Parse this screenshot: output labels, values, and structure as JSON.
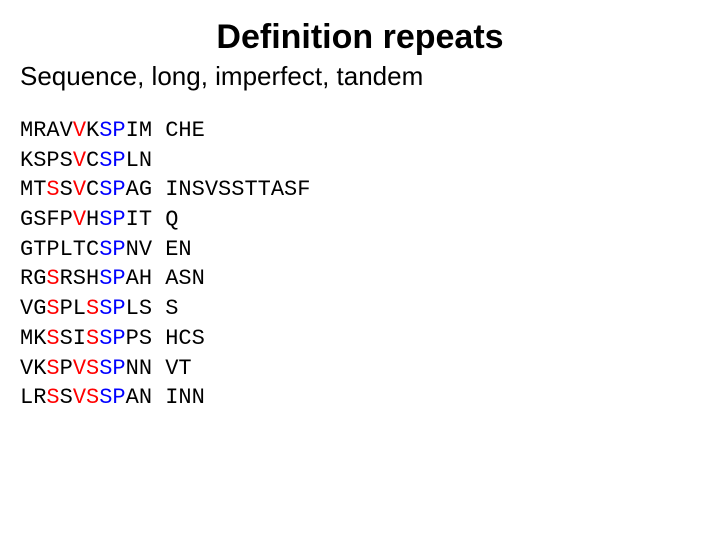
{
  "title": "Definition repeats",
  "subtitle": "Sequence, long, imperfect, tandem",
  "colors": {
    "text": "#000000",
    "highlight_red": "#ff0000",
    "highlight_blue": "#0000ff",
    "background": "#ffffff"
  },
  "typography": {
    "title_fontsize_pt": 26,
    "subtitle_fontsize_pt": 20,
    "seq_fontsize_pt": 17,
    "title_weight": "bold",
    "seq_font": "Courier New"
  },
  "sequence": {
    "col_gap_chars": 1,
    "lines": [
      {
        "col1": [
          {
            "t": "MRAV",
            "c": "k"
          },
          {
            "t": "V",
            "c": "r"
          },
          {
            "t": "K",
            "c": "k"
          },
          {
            "t": "SP",
            "c": "b"
          },
          {
            "t": "IM",
            "c": "k"
          }
        ],
        "col2": [
          {
            "t": "CHE",
            "c": "k"
          }
        ]
      },
      {
        "col1": [
          {
            "t": "KSPS",
            "c": "k"
          },
          {
            "t": "V",
            "c": "r"
          },
          {
            "t": "C",
            "c": "k"
          },
          {
            "t": "SP",
            "c": "b"
          },
          {
            "t": "LN",
            "c": "k"
          }
        ],
        "col2": []
      },
      {
        "col1": [
          {
            "t": "MT",
            "c": "k"
          },
          {
            "t": "S",
            "c": "r"
          },
          {
            "t": "S",
            "c": "k"
          },
          {
            "t": "V",
            "c": "r"
          },
          {
            "t": "C",
            "c": "k"
          },
          {
            "t": "SP",
            "c": "b"
          },
          {
            "t": "AG",
            "c": "k"
          }
        ],
        "col2": [
          {
            "t": "INSVSSTTASF",
            "c": "k"
          }
        ]
      },
      {
        "col1": [
          {
            "t": "GSFP",
            "c": "k"
          },
          {
            "t": "V",
            "c": "r"
          },
          {
            "t": "H",
            "c": "k"
          },
          {
            "t": "SP",
            "c": "b"
          },
          {
            "t": "IT",
            "c": "k"
          }
        ],
        "col2": [
          {
            "t": "Q",
            "c": "k"
          }
        ]
      },
      {
        "col1": [
          {
            "t": "GTPLTC",
            "c": "k"
          },
          {
            "t": "SP",
            "c": "b"
          },
          {
            "t": "NV",
            "c": "k"
          }
        ],
        "col2": [
          {
            "t": "EN",
            "c": "k"
          }
        ]
      },
      {
        "col1": [
          {
            "t": "RG",
            "c": "k"
          },
          {
            "t": "S",
            "c": "r"
          },
          {
            "t": "RSH",
            "c": "k"
          },
          {
            "t": "SP",
            "c": "b"
          },
          {
            "t": "AH",
            "c": "k"
          }
        ],
        "col2": [
          {
            "t": "ASN",
            "c": "k"
          }
        ]
      },
      {
        "col1": [
          {
            "t": "VG",
            "c": "k"
          },
          {
            "t": "S",
            "c": "r"
          },
          {
            "t": "PL",
            "c": "k"
          },
          {
            "t": "S",
            "c": "r"
          },
          {
            "t": "SP",
            "c": "b"
          },
          {
            "t": "LS",
            "c": "k"
          }
        ],
        "col2": [
          {
            "t": "S",
            "c": "k"
          }
        ]
      },
      {
        "col1": [
          {
            "t": "MK",
            "c": "k"
          },
          {
            "t": "S",
            "c": "r"
          },
          {
            "t": "SI",
            "c": "k"
          },
          {
            "t": "S",
            "c": "r"
          },
          {
            "t": "SP",
            "c": "b"
          },
          {
            "t": "PS",
            "c": "k"
          }
        ],
        "col2": [
          {
            "t": "HCS",
            "c": "k"
          }
        ]
      },
      {
        "col1": [
          {
            "t": "VK",
            "c": "k"
          },
          {
            "t": "S",
            "c": "r"
          },
          {
            "t": "P",
            "c": "k"
          },
          {
            "t": "V",
            "c": "r"
          },
          {
            "t": "S",
            "c": "r"
          },
          {
            "t": "SP",
            "c": "b"
          },
          {
            "t": "NN",
            "c": "k"
          }
        ],
        "col2": [
          {
            "t": "VT",
            "c": "k"
          }
        ]
      },
      {
        "col1": [
          {
            "t": "LR",
            "c": "k"
          },
          {
            "t": "S",
            "c": "r"
          },
          {
            "t": "S",
            "c": "k"
          },
          {
            "t": "V",
            "c": "r"
          },
          {
            "t": "S",
            "c": "r"
          },
          {
            "t": "SP",
            "c": "b"
          },
          {
            "t": "AN",
            "c": "k"
          }
        ],
        "col2": [
          {
            "t": "INN",
            "c": "k"
          }
        ]
      }
    ]
  }
}
